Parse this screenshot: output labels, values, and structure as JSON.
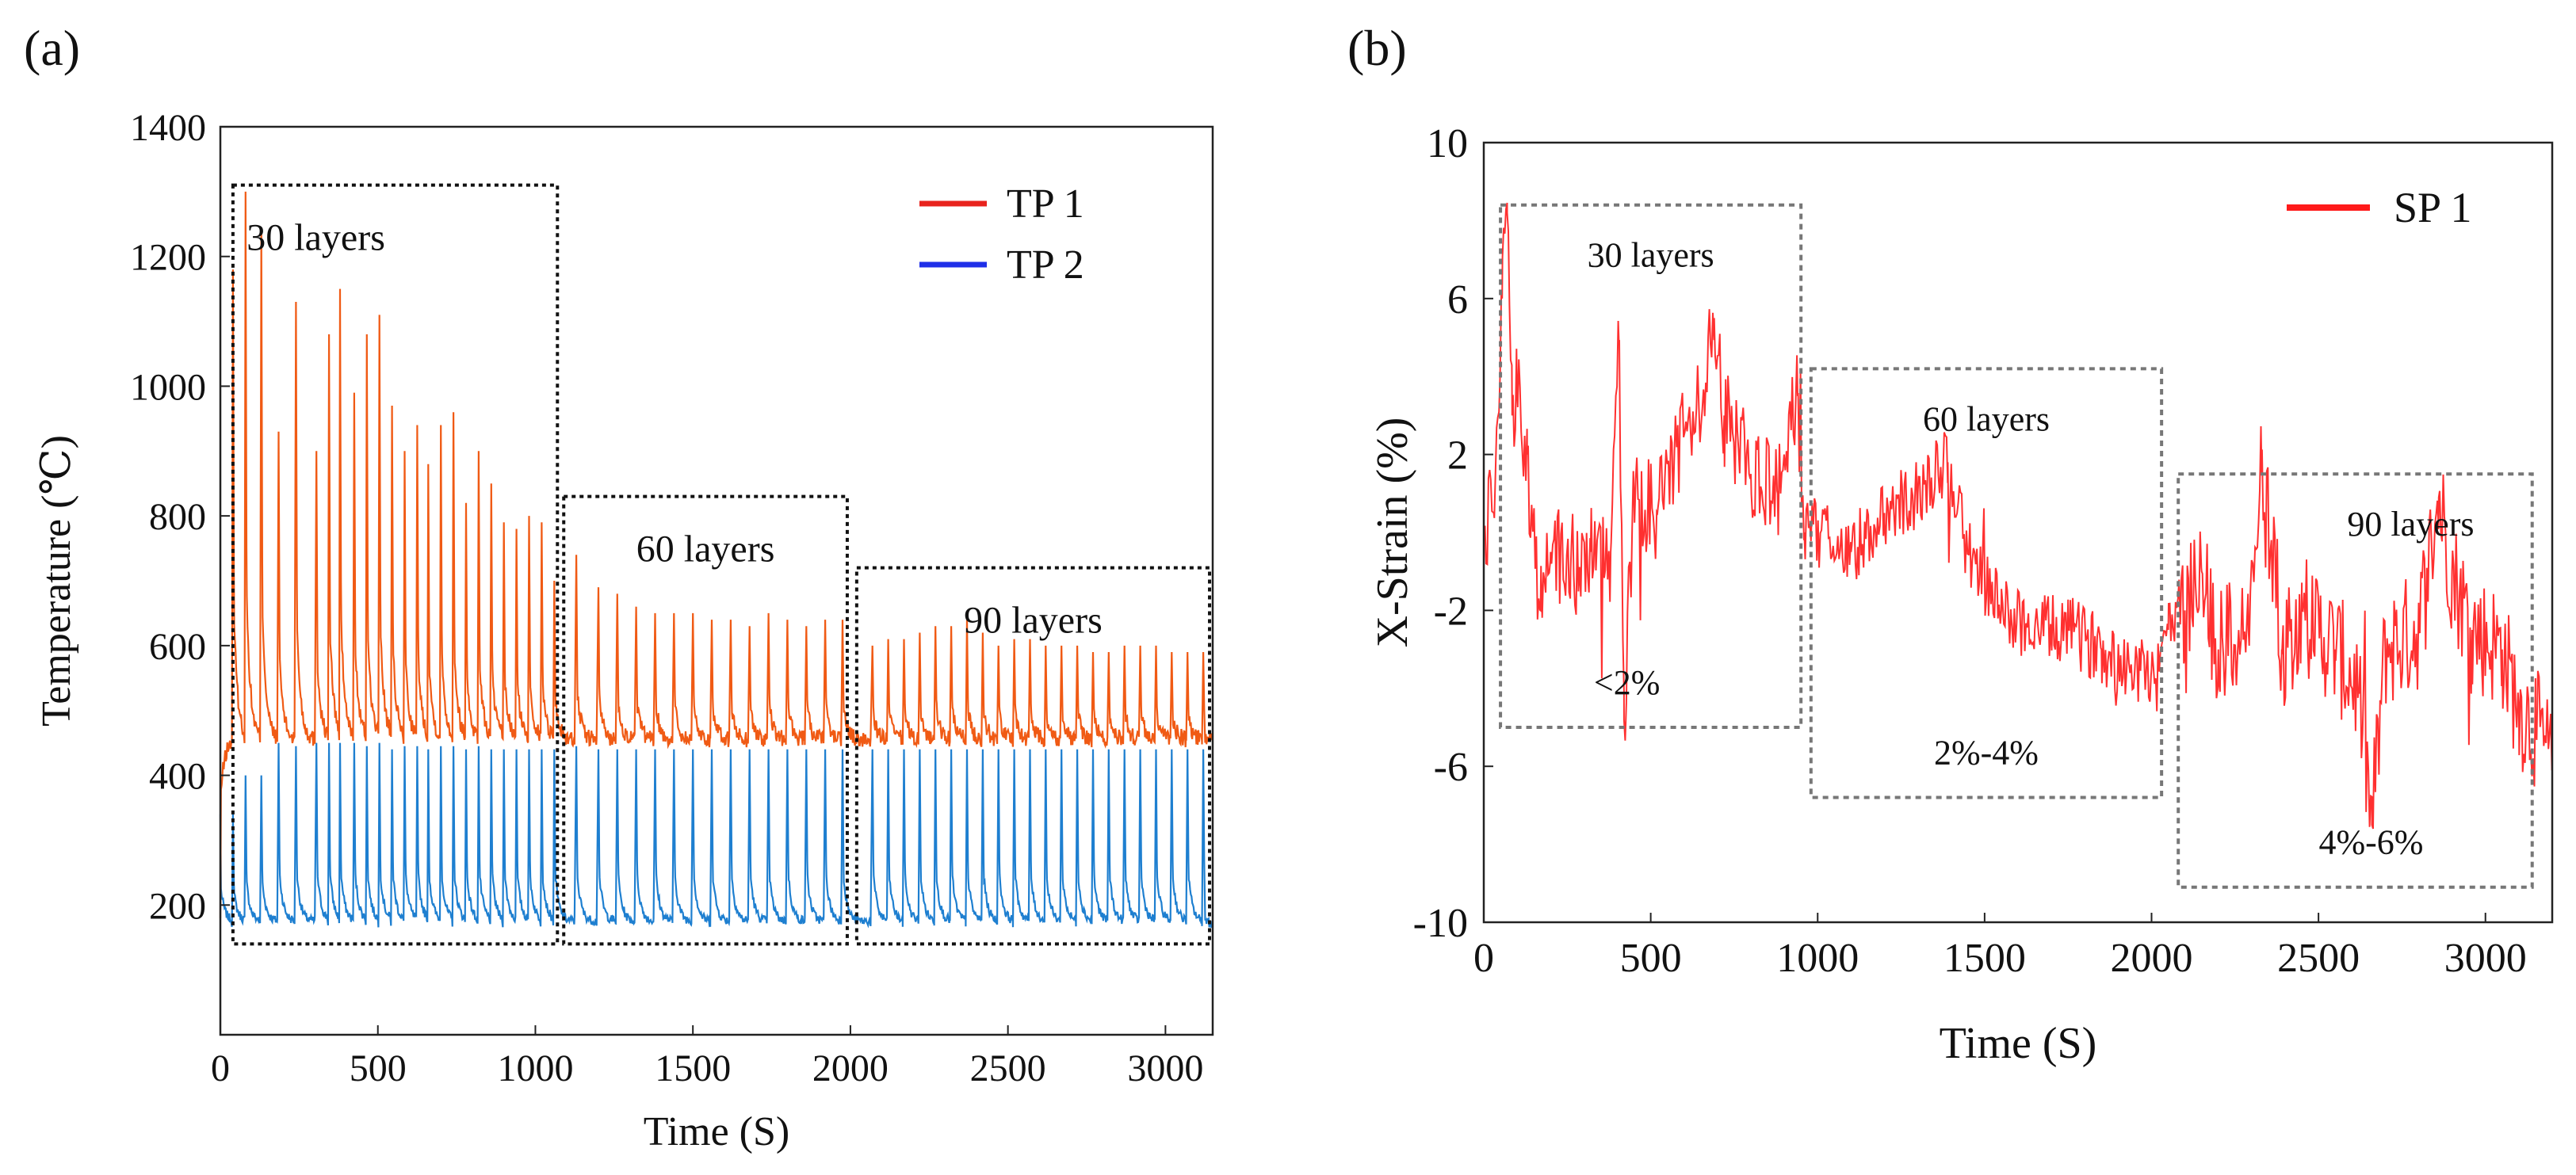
{
  "chart_data": [
    {
      "panel_label": "(a)",
      "type": "line",
      "xlabel": "Time (S)",
      "ylabel": "Temperature (℃)",
      "xlim": [
        0,
        3150
      ],
      "ylim": [
        0,
        1400
      ],
      "xticks": [
        0,
        500,
        1000,
        1500,
        2000,
        2500,
        3000
      ],
      "yticks": [
        200,
        400,
        600,
        800,
        1000,
        1200,
        1400
      ],
      "grid": false,
      "legend_position": "top-right",
      "series": [
        {
          "name": "TP 1",
          "legend_color": "#e8231d",
          "line_color": "#f05a14",
          "baseline": 455,
          "peak_times": [
            40,
            80,
            130,
            185,
            240,
            305,
            345,
            380,
            425,
            465,
            505,
            545,
            585,
            625,
            660,
            700,
            740,
            780,
            820,
            860,
            900,
            940,
            980,
            1020,
            1060,
            1130,
            1200,
            1260,
            1320,
            1380,
            1440,
            1500,
            1560,
            1620,
            1680,
            1740,
            1800,
            1860,
            1920,
            1975,
            2070,
            2120,
            2170,
            2220,
            2270,
            2320,
            2370,
            2420,
            2470,
            2520,
            2570,
            2620,
            2670,
            2720,
            2770,
            2820,
            2870,
            2920,
            2970,
            3020,
            3070,
            3120
          ],
          "peak_values": [
            1180,
            1300,
            1240,
            930,
            1130,
            900,
            1080,
            1150,
            990,
            1080,
            1110,
            970,
            900,
            940,
            880,
            940,
            960,
            820,
            900,
            850,
            790,
            780,
            800,
            790,
            700,
            740,
            690,
            680,
            660,
            650,
            650,
            650,
            640,
            640,
            630,
            650,
            640,
            630,
            640,
            640,
            600,
            610,
            610,
            620,
            630,
            630,
            640,
            620,
            600,
            610,
            610,
            600,
            600,
            600,
            590,
            590,
            600,
            600,
            600,
            590,
            590,
            590
          ]
        },
        {
          "name": "TP 2",
          "legend_color": "#1f2fe8",
          "line_color": "#1e7fd0",
          "baseline": 175,
          "peak_times": [
            40,
            80,
            130,
            185,
            240,
            305,
            345,
            380,
            425,
            465,
            505,
            545,
            585,
            625,
            660,
            700,
            740,
            780,
            820,
            860,
            900,
            940,
            980,
            1020,
            1060,
            1130,
            1200,
            1260,
            1320,
            1380,
            1440,
            1500,
            1560,
            1620,
            1680,
            1740,
            1800,
            1860,
            1920,
            1975,
            2070,
            2120,
            2170,
            2220,
            2270,
            2320,
            2370,
            2420,
            2470,
            2520,
            2570,
            2620,
            2670,
            2720,
            2770,
            2820,
            2870,
            2920,
            2970,
            3020,
            3070,
            3120
          ],
          "peak_values": [
            340,
            400,
            400,
            450,
            445,
            450,
            450,
            450,
            450,
            445,
            450,
            440,
            445,
            445,
            440,
            445,
            445,
            440,
            445,
            440,
            440,
            440,
            440,
            440,
            440,
            445,
            440,
            440,
            440,
            440,
            440,
            440,
            440,
            440,
            440,
            440,
            440,
            440,
            440,
            440,
            440,
            440,
            440,
            440,
            440,
            440,
            440,
            440,
            440,
            440,
            440,
            440,
            440,
            440,
            440,
            440,
            440,
            440,
            440,
            440,
            440,
            440
          ]
        }
      ],
      "annotations": [
        {
          "label": "30 layers",
          "x_range": [
            40,
            1070
          ],
          "y_range": [
            140,
            1310
          ]
        },
        {
          "label": "60 layers",
          "x_range": [
            1090,
            1990
          ],
          "y_range": [
            140,
            830
          ]
        },
        {
          "label": "90 layers",
          "x_range": [
            2020,
            3140
          ],
          "y_range": [
            140,
            720
          ]
        }
      ]
    },
    {
      "panel_label": "(b)",
      "type": "line",
      "xlabel": "Time (S)",
      "ylabel": "X-Strain (%)",
      "xlim": [
        0,
        3200
      ],
      "ylim": [
        -10,
        10
      ],
      "xticks": [
        0,
        500,
        1000,
        1500,
        2000,
        2500,
        3000
      ],
      "yticks": [
        10,
        6,
        2,
        -2,
        -6,
        -10
      ],
      "grid": false,
      "legend_position": "top-right",
      "series": [
        {
          "name": "SP 1",
          "legend_color": "#ff1a1a",
          "line_color": "#ff3030",
          "anchor_x": [
            0,
            30,
            55,
            70,
            85,
            100,
            130,
            170,
            200,
            260,
            320,
            380,
            405,
            420,
            450,
            520,
            600,
            660,
            690,
            720,
            800,
            880,
            940,
            960,
            1000,
            1100,
            1200,
            1300,
            1390,
            1450,
            1550,
            1650,
            1750,
            1850,
            1950,
            2000,
            2050,
            2100,
            2150,
            2200,
            2290,
            2330,
            2390,
            2450,
            2550,
            2620,
            2660,
            2700,
            2800,
            2860,
            2900,
            2960,
            3050,
            3100,
            3150,
            3200
          ],
          "anchor_y": [
            0,
            0.5,
            6,
            8.2,
            3,
            3.5,
            2,
            -2,
            -0.5,
            -1,
            -0.5,
            -0.5,
            4.8,
            -4.8,
            1,
            0.5,
            2.5,
            3.5,
            5.5,
            3,
            1.5,
            1,
            3.5,
            0,
            0,
            -0.5,
            0.5,
            1,
            1.8,
            -0.5,
            -2,
            -2.5,
            -2.5,
            -3,
            -3.5,
            -3.5,
            -2.5,
            -2,
            -1,
            -3,
            -2.5,
            1.5,
            -3,
            -2,
            -3,
            -4,
            -7.5,
            -3,
            -2.5,
            0.9,
            -1,
            -2.5,
            -3,
            -4.5,
            -5,
            -6
          ]
        }
      ],
      "annotations": [
        {
          "label": "30 layers",
          "sublabel": "<2%",
          "x_range": [
            50,
            950
          ],
          "y_range": [
            -5,
            8.4
          ]
        },
        {
          "label": "60 layers",
          "sublabel": "2%-4%",
          "x_range": [
            980,
            2030
          ],
          "y_range": [
            -6.8,
            4.2
          ]
        },
        {
          "label": "90 layers",
          "sublabel": "4%-6%",
          "x_range": [
            2080,
            3140
          ],
          "y_range": [
            -9.1,
            1.5
          ]
        }
      ]
    }
  ]
}
